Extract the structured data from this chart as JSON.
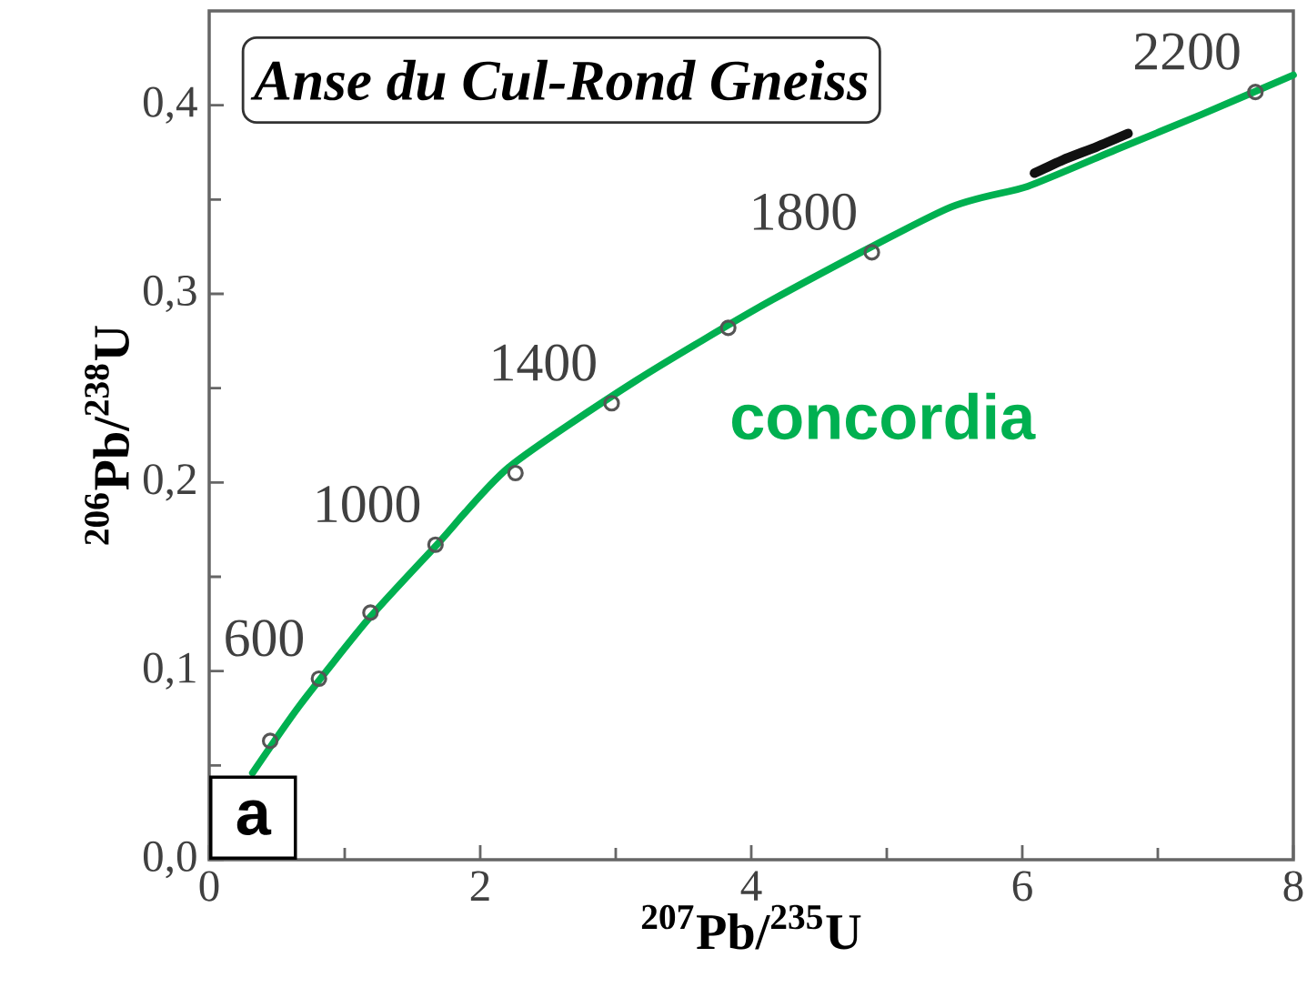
{
  "chart_data": {
    "type": "line",
    "title": "Anse du Cul-Rond Gneiss",
    "xlabel": "$^{207}$Pb/$^{235}$U",
    "ylabel": "$^{206}$Pb/$^{238}$U",
    "xlim": [
      0,
      8
    ],
    "ylim": [
      0,
      0.45
    ],
    "xticks": [
      0,
      2,
      4,
      6,
      8
    ],
    "yticks": [
      {
        "value": 0,
        "label": "0,0"
      },
      {
        "value": 0.1,
        "label": "0,1"
      },
      {
        "value": 0.2,
        "label": "0,2"
      },
      {
        "value": 0.3,
        "label": "0,3"
      },
      {
        "value": 0.4,
        "label": "0,4"
      }
    ],
    "grid": false,
    "legend": false,
    "series": [
      {
        "type": "scatter",
        "marker": "circle",
        "color": "#555555",
        "x": [
          0.45,
          0.81,
          1.19,
          1.67,
          2.26,
          2.97,
          3.83,
          4.89,
          7.72
        ],
        "values": [
          0.063,
          0.096,
          0.131,
          0.167,
          0.205,
          0.242,
          0.282,
          0.322,
          0.407
        ]
      },
      {
        "color": "#111111",
        "x": [
          6.09,
          6.3,
          6.55,
          6.78
        ],
        "values": [
          0.364,
          0.371,
          0.378,
          0.385
        ]
      },
      {
        "name": "concordia",
        "color": "#00b050",
        "x": [
          0.32,
          0.67,
          1.18,
          1.68,
          2.21,
          3.15,
          4.16,
          5.44,
          6.04,
          6.71,
          7.32,
          8.0
        ],
        "values": [
          0.046,
          0.082,
          0.128,
          0.167,
          0.208,
          0.254,
          0.297,
          0.345,
          0.357,
          0.377,
          0.395,
          0.416
        ]
      }
    ],
    "annotations": [
      "a",
      {
        "text": "600",
        "x": 0.81,
        "y": 0.096
      },
      {
        "text": "1000",
        "x": 1.67,
        "y": 0.167
      },
      {
        "text": "1400",
        "x": 2.97,
        "y": 0.242
      },
      {
        "text": "1800",
        "x": 4.89,
        "y": 0.322
      },
      {
        "text": "2200",
        "x": 7.72,
        "y": 0.407
      }
    ]
  }
}
